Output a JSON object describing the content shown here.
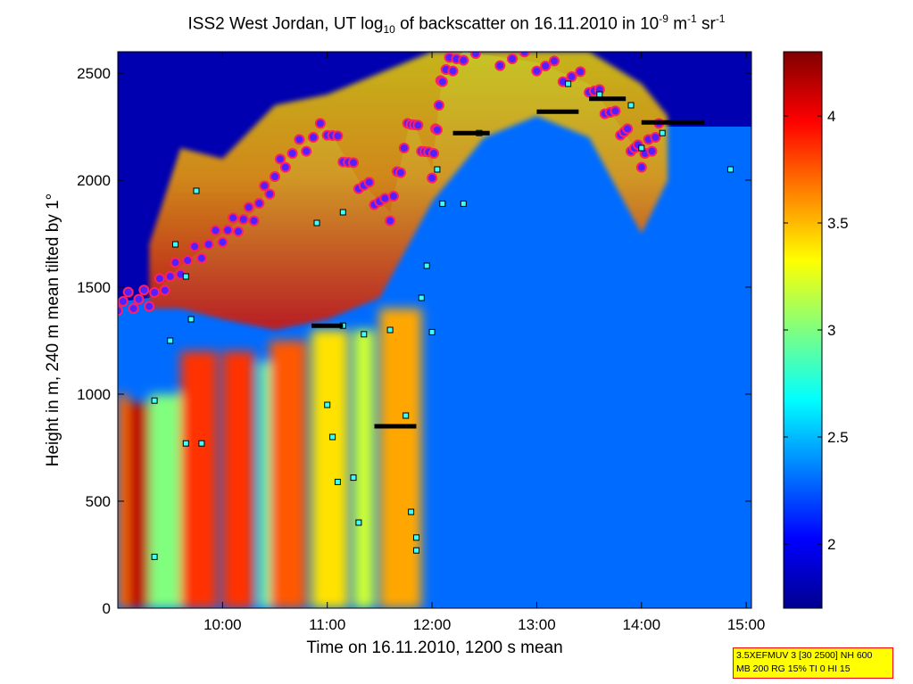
{
  "title": {
    "prefix": "ISS2 West Jordan, UT log",
    "sub": "10",
    "mid": " of backscatter on 16.11.2010 in 10",
    "sup1": "-9",
    "unit1": " m",
    "sup2": "-1",
    "unit2": " sr",
    "sup3": "-1"
  },
  "infobox": {
    "line1": "3.5XEFMUV 3 [30 2500] NH 600",
    "line2": "MB 200 RG 15% TI 0 HI 15"
  },
  "chart_data": {
    "type": "heatmap",
    "xlabel": "Time on 16.11.2010, 1200 s mean",
    "ylabel": "Height in m, 240 m mean tilted by 1°",
    "x_unit": "hours UTC",
    "xlim": [
      9.0,
      15.05
    ],
    "ylim": [
      0,
      2600
    ],
    "x_ticks": [
      {
        "v": 10,
        "label": "10:00"
      },
      {
        "v": 11,
        "label": "11:00"
      },
      {
        "v": 12,
        "label": "12:00"
      },
      {
        "v": 13,
        "label": "13:00"
      },
      {
        "v": 14,
        "label": "14:00"
      },
      {
        "v": 15,
        "label": "15:00"
      }
    ],
    "y_ticks": [
      0,
      500,
      1000,
      1500,
      2000,
      2500
    ],
    "colorbar": {
      "clim": [
        1.7,
        4.3
      ],
      "ticks": [
        2,
        2.5,
        3,
        3.5,
        4
      ],
      "colormap": [
        "#00008f",
        "#0000ff",
        "#00ffff",
        "#ffff00",
        "#ff0000",
        "#800000"
      ]
    },
    "background_value": 2.3,
    "top_sky_value": 1.8,
    "columns": [
      {
        "x": [
          9.0,
          9.1
        ],
        "v": 3.7,
        "top": 1000
      },
      {
        "x": [
          9.1,
          9.3
        ],
        "v": 4.15,
        "top": 960
      },
      {
        "x": [
          9.3,
          9.6
        ],
        "v": 3.0,
        "top": 1000
      },
      {
        "x": [
          9.6,
          9.95
        ],
        "v": 3.85,
        "top": 1200
      },
      {
        "x": [
          10.0,
          10.3
        ],
        "v": 3.85,
        "top": 1200
      },
      {
        "x": [
          10.35,
          10.45
        ],
        "v": 2.9,
        "top": 1150
      },
      {
        "x": [
          10.45,
          10.8
        ],
        "v": 3.75,
        "top": 1250
      },
      {
        "x": [
          10.85,
          11.2
        ],
        "v": 3.4,
        "top": 1300
      },
      {
        "x": [
          11.25,
          11.45
        ],
        "v": 3.2,
        "top": 1300
      },
      {
        "x": [
          11.5,
          11.9
        ],
        "v": 3.55,
        "top": 1400
      }
    ],
    "cloud_band": [
      {
        "x": 9.3,
        "bottom": 1400,
        "top": 1700
      },
      {
        "x": 9.6,
        "bottom": 1400,
        "top": 2150
      },
      {
        "x": 10.0,
        "bottom": 1350,
        "top": 2100
      },
      {
        "x": 10.5,
        "bottom": 1300,
        "top": 2350
      },
      {
        "x": 11.0,
        "bottom": 1350,
        "top": 2400
      },
      {
        "x": 11.5,
        "bottom": 1450,
        "top": 2500
      },
      {
        "x": 12.0,
        "bottom": 1900,
        "top": 2600
      },
      {
        "x": 12.5,
        "bottom": 2200,
        "top": 2600
      },
      {
        "x": 13.0,
        "bottom": 2300,
        "top": 2600
      },
      {
        "x": 13.5,
        "bottom": 2200,
        "top": 2600
      },
      {
        "x": 14.0,
        "bottom": 1750,
        "top": 2450
      },
      {
        "x": 14.25,
        "bottom": 2000,
        "top": 2300
      }
    ],
    "aerosol_top_layer": [
      {
        "x": 9.0,
        "y": 1430
      },
      {
        "x": 9.3,
        "y": 1450
      },
      {
        "x": 9.6,
        "y": 1600
      },
      {
        "x": 10.0,
        "y": 1750
      },
      {
        "x": 10.3,
        "y": 1850
      },
      {
        "x": 10.6,
        "y": 2100
      },
      {
        "x": 11.0,
        "y": 2250
      },
      {
        "x": 11.3,
        "y": 2000
      },
      {
        "x": 11.6,
        "y": 1850
      },
      {
        "x": 11.8,
        "y": 2300
      },
      {
        "x": 12.0,
        "y": 2050
      },
      {
        "x": 12.1,
        "y": 2500
      },
      {
        "x": 12.3,
        "y": 2600
      },
      {
        "x": 13.0,
        "y": 2550
      },
      {
        "x": 13.5,
        "y": 2450
      },
      {
        "x": 13.8,
        "y": 2250
      },
      {
        "x": 14.0,
        "y": 2100
      },
      {
        "x": 14.2,
        "y": 2250
      }
    ],
    "layer_markers": [
      {
        "x": 9.55,
        "y": 1700
      },
      {
        "x": 9.65,
        "y": 1550
      },
      {
        "x": 9.7,
        "y": 1350
      },
      {
        "x": 9.5,
        "y": 1250
      },
      {
        "x": 9.35,
        "y": 970
      },
      {
        "x": 9.65,
        "y": 770
      },
      {
        "x": 9.8,
        "y": 770
      },
      {
        "x": 9.35,
        "y": 240
      },
      {
        "x": 9.75,
        "y": 1950
      },
      {
        "x": 11.0,
        "y": 950
      },
      {
        "x": 11.05,
        "y": 800
      },
      {
        "x": 11.1,
        "y": 590
      },
      {
        "x": 11.25,
        "y": 610
      },
      {
        "x": 11.3,
        "y": 400
      },
      {
        "x": 11.15,
        "y": 1320
      },
      {
        "x": 11.35,
        "y": 1280
      },
      {
        "x": 11.6,
        "y": 1300
      },
      {
        "x": 11.75,
        "y": 900
      },
      {
        "x": 11.8,
        "y": 450
      },
      {
        "x": 11.85,
        "y": 330
      },
      {
        "x": 11.85,
        "y": 270
      },
      {
        "x": 11.9,
        "y": 1450
      },
      {
        "x": 11.95,
        "y": 1600
      },
      {
        "x": 12.0,
        "y": 1290
      },
      {
        "x": 12.05,
        "y": 2050
      },
      {
        "x": 12.1,
        "y": 1890
      },
      {
        "x": 12.3,
        "y": 1890
      },
      {
        "x": 12.45,
        "y": 2220
      },
      {
        "x": 13.3,
        "y": 2450
      },
      {
        "x": 13.6,
        "y": 2400
      },
      {
        "x": 13.9,
        "y": 2350
      },
      {
        "x": 14.0,
        "y": 2150
      },
      {
        "x": 14.2,
        "y": 2220
      },
      {
        "x": 14.85,
        "y": 2050
      },
      {
        "x": 10.9,
        "y": 1800
      },
      {
        "x": 11.15,
        "y": 1850
      }
    ],
    "layer_lines": [
      {
        "x": [
          11.45,
          11.85
        ],
        "y": 850
      },
      {
        "x": [
          12.2,
          12.55
        ],
        "y": 2220
      },
      {
        "x": [
          13.0,
          13.4
        ],
        "y": 2320
      },
      {
        "x": [
          13.5,
          13.85
        ],
        "y": 2380
      },
      {
        "x": [
          14.0,
          14.6
        ],
        "y": 2270
      },
      {
        "x": [
          10.85,
          11.15
        ],
        "y": 1320
      }
    ]
  }
}
